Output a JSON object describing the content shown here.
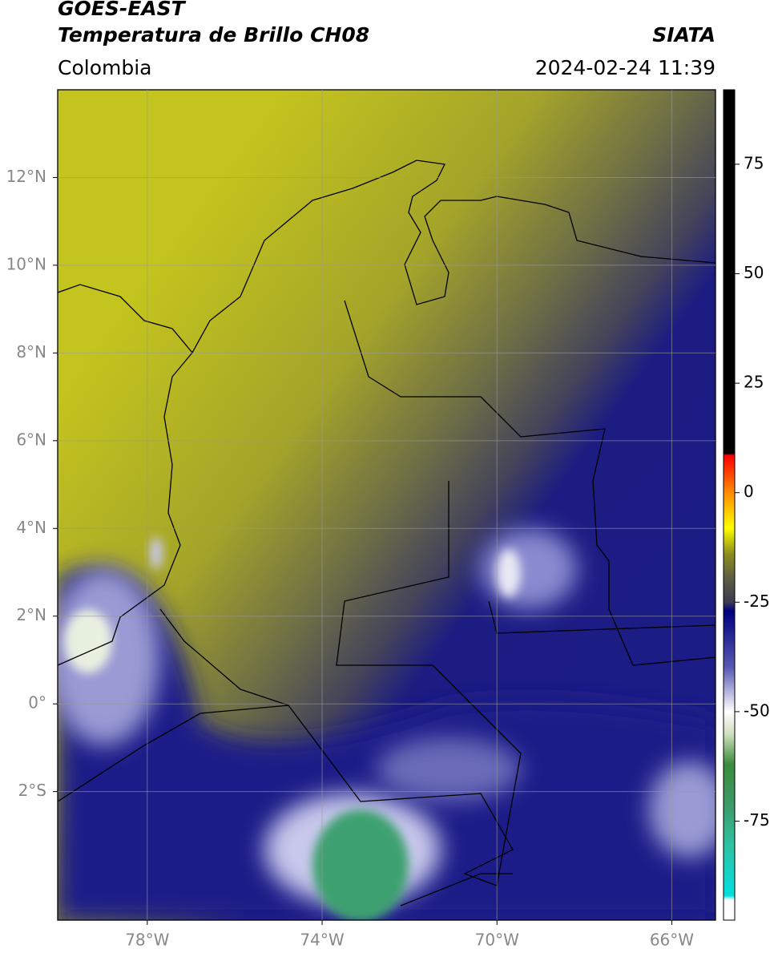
{
  "header": {
    "line1": "GOES-EAST",
    "line2": "Temperatura de Brillo CH08",
    "region": "Colombia",
    "source": "SIATA",
    "datetime": "2024-02-24 11:39"
  },
  "chart_data": {
    "type": "map",
    "xlim": [
      -80.05,
      -65
    ],
    "ylim": [
      -4.93,
      14
    ],
    "xticks": [
      {
        "value": -78,
        "label": "78°W"
      },
      {
        "value": -74,
        "label": "74°W"
      },
      {
        "value": -70,
        "label": "70°W"
      },
      {
        "value": -66,
        "label": "66°W"
      }
    ],
    "yticks": [
      {
        "value": 12,
        "label": "12°N"
      },
      {
        "value": 10,
        "label": "10°N"
      },
      {
        "value": 8,
        "label": "8°N"
      },
      {
        "value": 6,
        "label": "6°N"
      },
      {
        "value": 4,
        "label": "4°N"
      },
      {
        "value": 2,
        "label": "2°N"
      },
      {
        "value": 0,
        "label": "0°"
      },
      {
        "value": -2,
        "label": "2°S"
      }
    ],
    "grid": true,
    "colorbar": {
      "lim": [
        -97.6,
        92
      ],
      "ticks": [
        75,
        50,
        25,
        0,
        -25,
        -50,
        -75
      ],
      "stops": [
        {
          "value": 92,
          "color": "#000000"
        },
        {
          "value": 9,
          "color": "#000000"
        },
        {
          "value": 8.5,
          "color": "#ff0000"
        },
        {
          "value": 0,
          "color": "#ff8c00"
        },
        {
          "value": -8,
          "color": "#ffff00"
        },
        {
          "value": -14,
          "color": "#8c8c1e"
        },
        {
          "value": -20,
          "color": "#5a5a46"
        },
        {
          "value": -25,
          "color": "#3c3c50"
        },
        {
          "value": -27,
          "color": "#000080"
        },
        {
          "value": -40,
          "color": "#5a5ab4"
        },
        {
          "value": -50,
          "color": "#ffffff"
        },
        {
          "value": -55,
          "color": "#d0e0c0"
        },
        {
          "value": -62,
          "color": "#3c8c3c"
        },
        {
          "value": -72,
          "color": "#3c9c6c"
        },
        {
          "value": -80,
          "color": "#30c0a0"
        },
        {
          "value": -92,
          "color": "#00e0e0"
        },
        {
          "value": -93,
          "color": "#ffffff"
        },
        {
          "value": -97.6,
          "color": "#ffffff"
        }
      ]
    }
  }
}
